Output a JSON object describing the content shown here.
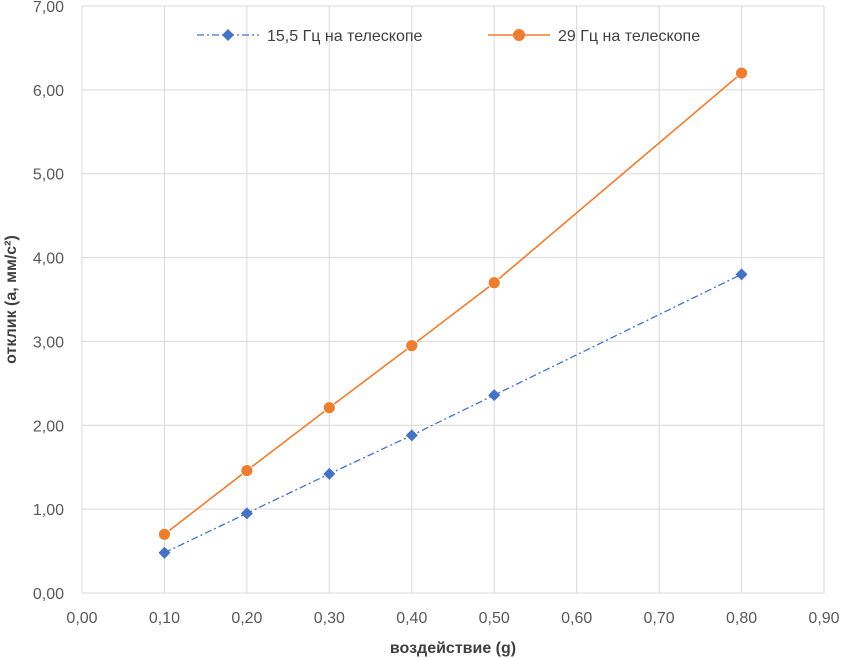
{
  "chart_data": {
    "type": "scatter",
    "xlabel": "воздействие (g)",
    "ylabel": "отклик (a, мм/с²)",
    "xlim": [
      0,
      0.9
    ],
    "ylim": [
      0,
      7
    ],
    "x_ticks": [
      "0,00",
      "0,10",
      "0,20",
      "0,30",
      "0,40",
      "0,50",
      "0,60",
      "0,70",
      "0,80",
      "0,90"
    ],
    "y_ticks": [
      "0,00",
      "1,00",
      "2,00",
      "3,00",
      "4,00",
      "5,00",
      "6,00",
      "7,00"
    ],
    "grid": true,
    "legend_position": "top",
    "series": [
      {
        "name": "15,5 Гц на телескопе",
        "color": "#4472C4",
        "line_style": "dash-dot",
        "marker": "diamond",
        "x": [
          0.1,
          0.2,
          0.3,
          0.4,
          0.5,
          0.8
        ],
        "y": [
          0.48,
          0.95,
          1.42,
          1.88,
          2.36,
          3.8
        ]
      },
      {
        "name": "29 Гц на телескопе",
        "color": "#ED7D31",
        "line_style": "solid",
        "marker": "circle",
        "x": [
          0.1,
          0.2,
          0.3,
          0.4,
          0.5,
          0.8
        ],
        "y": [
          0.7,
          1.46,
          2.21,
          2.95,
          3.7,
          6.2
        ]
      }
    ]
  }
}
